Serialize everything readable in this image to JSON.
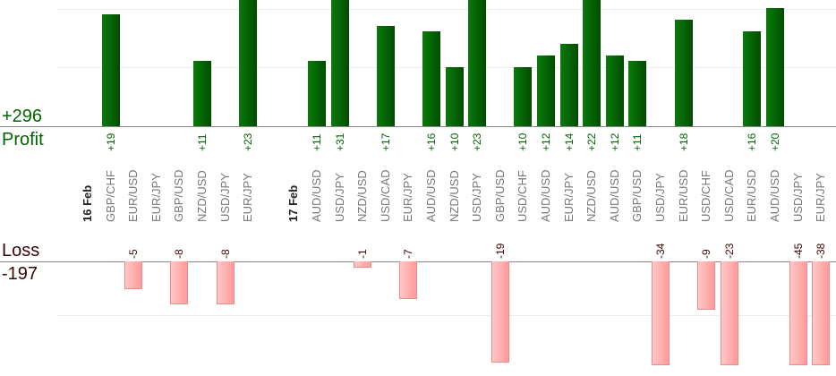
{
  "chart_data": {
    "type": "bar",
    "title": "",
    "profit_label": "Profit",
    "loss_label": "Loss",
    "profit_total": "+296",
    "loss_total": "-197",
    "colors": {
      "profit": "#006400",
      "loss": "#ff9a9a",
      "loss_text": "#3a0505"
    },
    "columns": [
      {
        "label": "16 Feb",
        "kind": "date"
      },
      {
        "label": "GBP/CHF",
        "kind": "pair",
        "value": 19,
        "value_label": "+19"
      },
      {
        "label": "EUR/USD",
        "kind": "pair",
        "value": -5,
        "value_label": "-5"
      },
      {
        "label": "EUR/JPY",
        "kind": "pair"
      },
      {
        "label": "GBP/USD",
        "kind": "pair",
        "value": -8,
        "value_label": "-8"
      },
      {
        "label": "NZD/USD",
        "kind": "pair",
        "value": 11,
        "value_label": "+11"
      },
      {
        "label": "USD/JPY",
        "kind": "pair",
        "value": -8,
        "value_label": "-8"
      },
      {
        "label": "EUR/JPY",
        "kind": "pair",
        "value": 23,
        "value_label": "+23"
      },
      {
        "label": "",
        "kind": "gap"
      },
      {
        "label": "17 Feb",
        "kind": "date"
      },
      {
        "label": "AUD/USD",
        "kind": "pair",
        "value": 11,
        "value_label": "+11"
      },
      {
        "label": "USD/JPY",
        "kind": "pair",
        "value": 31,
        "value_label": "+31"
      },
      {
        "label": "NZD/USD",
        "kind": "pair",
        "value": -1,
        "value_label": "-1"
      },
      {
        "label": "USD/CAD",
        "kind": "pair",
        "value": 17,
        "value_label": "+17"
      },
      {
        "label": "EUR/JPY",
        "kind": "pair",
        "value": -7,
        "value_label": "-7"
      },
      {
        "label": "AUD/USD",
        "kind": "pair",
        "value": 16,
        "value_label": "+16"
      },
      {
        "label": "NZD/USD",
        "kind": "pair",
        "value": 10,
        "value_label": "+10"
      },
      {
        "label": "USD/JPY",
        "kind": "pair",
        "value": 23,
        "value_label": "+23"
      },
      {
        "label": "GBP/USD",
        "kind": "pair",
        "value": -19,
        "value_label": "-19"
      },
      {
        "label": "USD/CHF",
        "kind": "pair",
        "value": 10,
        "value_label": "+10"
      },
      {
        "label": "AUD/USD",
        "kind": "pair",
        "value": 12,
        "value_label": "+12"
      },
      {
        "label": "EUR/JPY",
        "kind": "pair",
        "value": 14,
        "value_label": "+14"
      },
      {
        "label": "NZD/USD",
        "kind": "pair",
        "value": 22,
        "value_label": "+22"
      },
      {
        "label": "AUD/USD",
        "kind": "pair",
        "value": 12,
        "value_label": "+12"
      },
      {
        "label": "GBP/USD",
        "kind": "pair",
        "value": 11,
        "value_label": "+11"
      },
      {
        "label": "USD/JPY",
        "kind": "pair",
        "value": -34,
        "value_label": "-34"
      },
      {
        "label": "EUR/USD",
        "kind": "pair",
        "value": 18,
        "value_label": "+18"
      },
      {
        "label": "USD/CHF",
        "kind": "pair",
        "value": -9,
        "value_label": "-9"
      },
      {
        "label": "USD/CAD",
        "kind": "pair",
        "value": -23,
        "value_label": "-23"
      },
      {
        "label": "EUR/USD",
        "kind": "pair",
        "value": 16,
        "value_label": "+16"
      },
      {
        "label": "AUD/USD",
        "kind": "pair",
        "value": 20,
        "value_label": "+20"
      },
      {
        "label": "USD/JPY",
        "kind": "pair",
        "value": -45,
        "value_label": "-45"
      },
      {
        "label": "EUR/JPY",
        "kind": "pair",
        "value": -38,
        "value_label": "-38"
      }
    ]
  }
}
